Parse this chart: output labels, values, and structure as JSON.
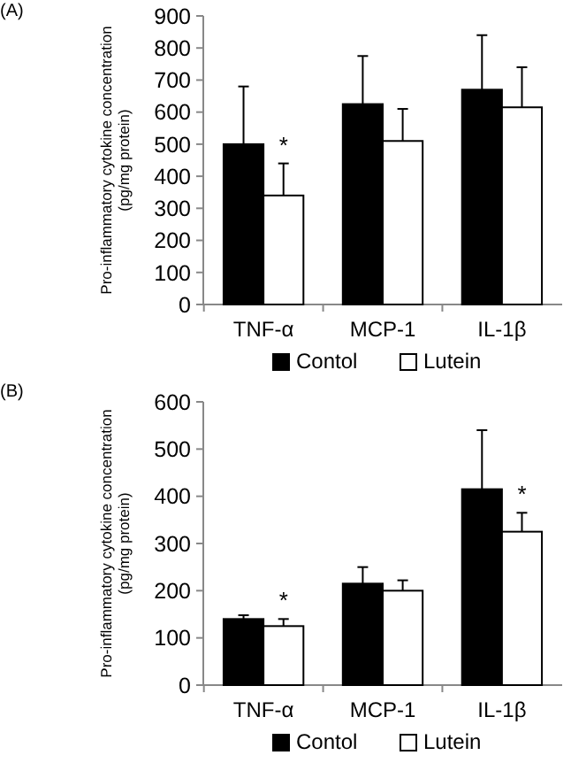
{
  "chart_data": [
    {
      "type": "bar",
      "ylabel": "Pro-inflammatory cytokine concentration\n(pg/mg protein)",
      "categories": [
        "TNF-α",
        "MCP-1",
        "IL-1β"
      ],
      "series": [
        {
          "name": "Contol",
          "color": "#000000",
          "values": [
            500,
            625,
            670
          ],
          "errors": [
            180,
            150,
            170
          ]
        },
        {
          "name": "Lutein",
          "color": "#ffffff",
          "values": [
            340,
            510,
            615
          ],
          "errors": [
            100,
            100,
            125
          ]
        }
      ],
      "ylim": [
        0,
        900
      ],
      "yticks": [
        0,
        100,
        200,
        300,
        400,
        500,
        600,
        700,
        800,
        900
      ],
      "legend": "bottom",
      "annotations": [
        "(A)",
        {
          "text": "*",
          "x": "TNF-α",
          "y": 440
        }
      ]
    },
    {
      "type": "bar",
      "ylabel": "Pro-inflammatory cytokine concentration\n(pg/mg protein)",
      "categories": [
        "TNF-α",
        "MCP-1",
        "IL-1β"
      ],
      "series": [
        {
          "name": "Contol",
          "color": "#000000",
          "values": [
            140,
            215,
            415
          ],
          "errors": [
            8,
            35,
            125
          ]
        },
        {
          "name": "Lutein",
          "color": "#ffffff",
          "values": [
            125,
            200,
            325
          ],
          "errors": [
            15,
            22,
            40
          ]
        }
      ],
      "ylim": [
        0,
        600
      ],
      "yticks": [
        0,
        100,
        200,
        300,
        400,
        500,
        600
      ],
      "legend": "bottom",
      "annotations": [
        "(B)",
        {
          "text": "*",
          "x": "TNF-α",
          "y": 140
        },
        {
          "text": "*",
          "x": "IL-1β",
          "y": 365
        }
      ]
    }
  ]
}
